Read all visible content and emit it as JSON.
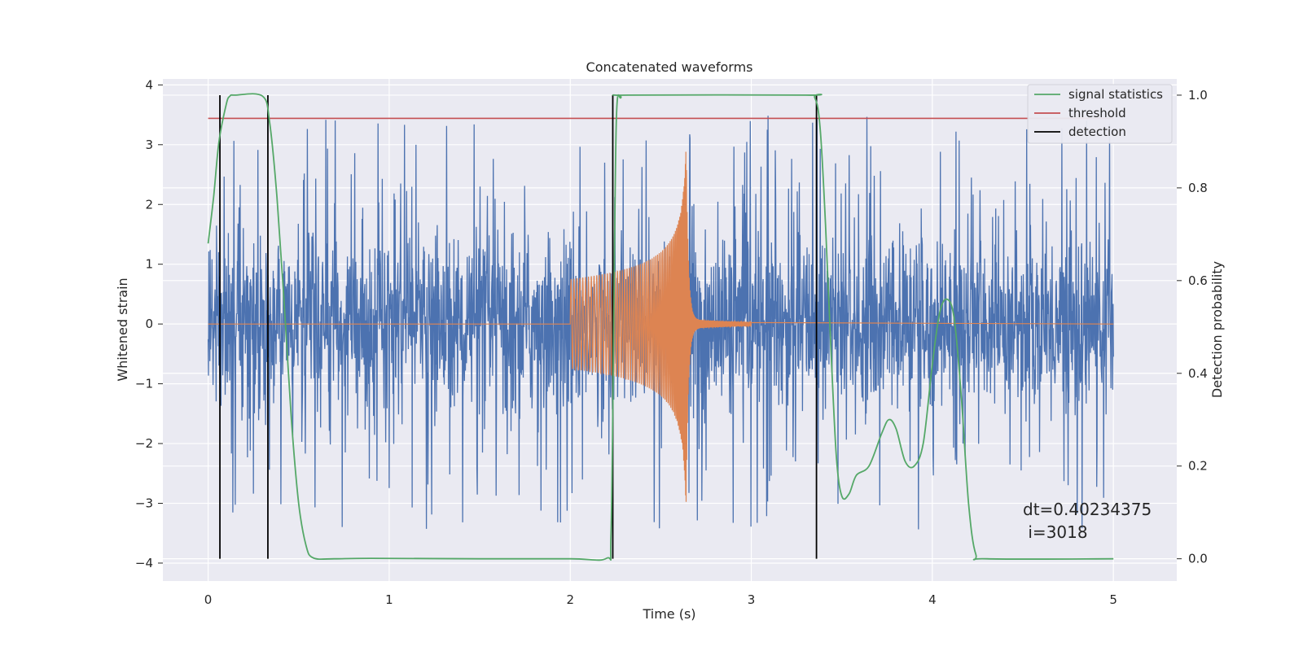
{
  "chart_data": {
    "type": "line",
    "title": "Concatenated waveforms",
    "xlabel": "Time (s)",
    "ylabel": "Whitened strain",
    "ylabel_right": "Detection probability",
    "xlim": [
      -0.25,
      5.35
    ],
    "ylim": [
      -4.3,
      4.1
    ],
    "ylim_right": [
      -0.048,
      1.035
    ],
    "x_ticks": [
      0,
      1,
      2,
      3,
      4,
      5
    ],
    "x_tick_labels": [
      "0",
      "1",
      "2",
      "3",
      "4",
      "5"
    ],
    "y_ticks": [
      -4,
      -3,
      -2,
      -1,
      0,
      1,
      2,
      3,
      4
    ],
    "y_tick_labels": [
      "−4",
      "−3",
      "−2",
      "−1",
      "0",
      "1",
      "2",
      "3",
      "4"
    ],
    "y_ticks_right": [
      0.0,
      0.2,
      0.4,
      0.6,
      0.8,
      1.0
    ],
    "y_tick_labels_right": [
      "0.0",
      "0.2",
      "0.4",
      "0.6",
      "0.8",
      "1.0"
    ],
    "grid": true,
    "legend_position": "top-right",
    "legend": [
      {
        "label": "signal statistics",
        "color": "#55a868"
      },
      {
        "label": "threshold",
        "color": "#c44e52"
      },
      {
        "label": "detection",
        "color": "#000000"
      }
    ],
    "noise": {
      "color": "#4c72b0",
      "x_range": [
        0,
        5
      ],
      "envelope": 1.5,
      "peak_range": [
        -3.9,
        3.6
      ]
    },
    "chirp": {
      "color": "#dd8452",
      "start": 2.0,
      "merger": 2.64,
      "ringdown_end": 3.0,
      "peak_amplitude": [
        -2.9,
        3.0
      ]
    },
    "signal_statistics": {
      "axis": "right",
      "color": "#55a868",
      "points": [
        [
          0.0,
          0.68
        ],
        [
          0.03,
          0.78
        ],
        [
          0.06,
          0.9
        ],
        [
          0.1,
          0.98
        ],
        [
          0.12,
          0.998
        ],
        [
          0.15,
          1.0
        ],
        [
          0.3,
          0.998
        ],
        [
          0.34,
          0.94
        ],
        [
          0.38,
          0.78
        ],
        [
          0.42,
          0.55
        ],
        [
          0.46,
          0.3
        ],
        [
          0.5,
          0.12
        ],
        [
          0.54,
          0.03
        ],
        [
          0.58,
          0.002
        ],
        [
          0.7,
          0.0
        ],
        [
          0.9,
          0.001
        ],
        [
          1.5,
          0.0
        ],
        [
          2.0,
          0.0
        ],
        [
          2.2,
          0.001
        ],
        [
          2.225,
          0.05
        ],
        [
          2.24,
          0.5
        ],
        [
          2.255,
          0.95
        ],
        [
          2.28,
          0.995
        ],
        [
          2.32,
          1.0
        ],
        [
          3.3,
          1.0
        ],
        [
          3.35,
          0.995
        ],
        [
          3.38,
          0.93
        ],
        [
          3.41,
          0.72
        ],
        [
          3.44,
          0.45
        ],
        [
          3.47,
          0.22
        ],
        [
          3.5,
          0.135
        ],
        [
          3.54,
          0.14
        ],
        [
          3.58,
          0.18
        ],
        [
          3.65,
          0.2
        ],
        [
          3.72,
          0.27
        ],
        [
          3.76,
          0.3
        ],
        [
          3.8,
          0.28
        ],
        [
          3.85,
          0.21
        ],
        [
          3.9,
          0.2
        ],
        [
          3.95,
          0.25
        ],
        [
          4.0,
          0.42
        ],
        [
          4.04,
          0.53
        ],
        [
          4.08,
          0.56
        ],
        [
          4.12,
          0.52
        ],
        [
          4.16,
          0.35
        ],
        [
          4.2,
          0.12
        ],
        [
          4.24,
          0.01
        ],
        [
          4.3,
          0.0
        ],
        [
          5.0,
          0.0
        ]
      ]
    },
    "threshold": {
      "axis": "right",
      "value": 0.95,
      "x_range": [
        0,
        5
      ]
    },
    "detections": [
      0.065,
      0.33,
      2.235,
      3.36
    ],
    "annotation": {
      "line1": "dt=0.40234375",
      "line2": " i=3018",
      "x": 4.5,
      "y": -3.1
    }
  }
}
